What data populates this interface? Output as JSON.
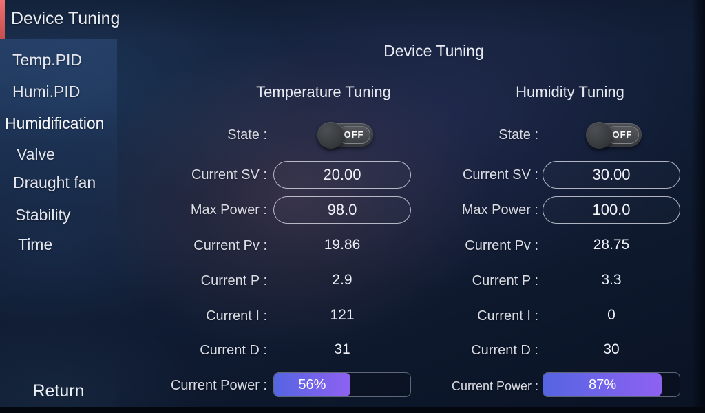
{
  "app": {
    "title": "Device Tuning"
  },
  "sidebar": {
    "items": [
      {
        "label": "Temp.PID"
      },
      {
        "label": "Humi.PID"
      },
      {
        "label": "Humidification"
      },
      {
        "label": "Valve"
      },
      {
        "label": "Draught fan"
      },
      {
        "label": "Stability"
      },
      {
        "label": "Time"
      }
    ],
    "return_label": "Return"
  },
  "main": {
    "title": "Device Tuning",
    "columns": [
      {
        "title": "Temperature Tuning",
        "state": {
          "label": "State :",
          "value": "OFF"
        },
        "current_sv": {
          "label": "Current SV :",
          "value": "20.00"
        },
        "max_power": {
          "label": "Max Power :",
          "value": "98.0"
        },
        "current_pv": {
          "label": "Current Pv :",
          "value": "19.86"
        },
        "current_p": {
          "label": "Current P :",
          "value": "2.9"
        },
        "current_i": {
          "label": "Current I :",
          "value": "121"
        },
        "current_d": {
          "label": "Current D :",
          "value": "31"
        },
        "current_power": {
          "label": "Current Power :",
          "percent": 56,
          "percent_label": "56%"
        }
      },
      {
        "title": "Humidity Tuning",
        "state": {
          "label": "State :",
          "value": "OFF"
        },
        "current_sv": {
          "label": "Current SV :",
          "value": "30.00"
        },
        "max_power": {
          "label": "Max Power :",
          "value": "100.0"
        },
        "current_pv": {
          "label": "Current Pv :",
          "value": "28.75"
        },
        "current_p": {
          "label": "Current P :",
          "value": "3.3"
        },
        "current_i": {
          "label": "Current I :",
          "value": "0"
        },
        "current_d": {
          "label": "Current D :",
          "value": "30"
        },
        "current_power": {
          "label": "Current Power :",
          "percent": 87,
          "percent_label": "87%"
        }
      }
    ]
  },
  "colors": {
    "accent_red": "#e05c5c",
    "background_navy": "#101c33",
    "progress_gradient_start": "#5565e2",
    "progress_gradient_end": "#8e61f1",
    "toggle_gray": "#3c4043"
  }
}
